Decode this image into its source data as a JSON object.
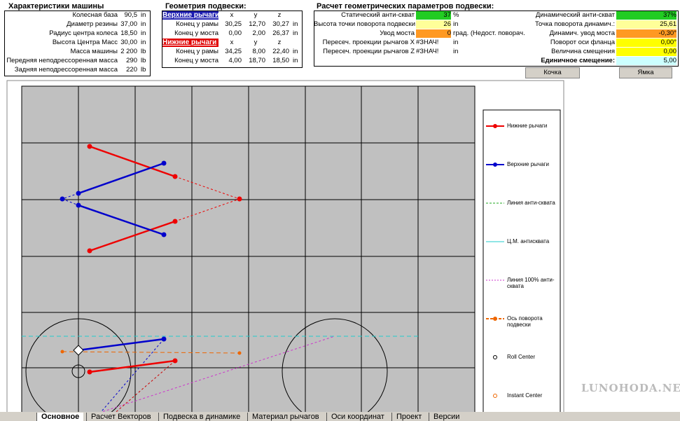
{
  "car": {
    "title": "Характеристики машины",
    "rows": [
      [
        "Колесная база",
        "90,5",
        "in"
      ],
      [
        "Диаметр резины",
        "37,00",
        "in"
      ],
      [
        "Радиус центра колеса",
        "18,50",
        "in"
      ],
      [
        "Высота Центра Масс",
        "30,00",
        "in"
      ],
      [
        "Масса машины",
        "2 200",
        "lb"
      ],
      [
        "Передняя неподрессоренная масса",
        "290",
        "lb"
      ],
      [
        "Задняя неподрессоренная масса",
        "220",
        "lb"
      ]
    ]
  },
  "geometry": {
    "title": "Геометрия подвески:",
    "columns": [
      "x",
      "y",
      "z"
    ],
    "groups": [
      {
        "name": "Верхние рычаги",
        "rows": [
          [
            "Конец у рамы",
            "30,25",
            "12,70",
            "30,27",
            "in"
          ],
          [
            "Конец у моста",
            "0,00",
            "2,00",
            "26,37",
            "in"
          ]
        ]
      },
      {
        "name": "Нижние рычаги",
        "rows": [
          [
            "Конец у рамы",
            "34,25",
            "8,00",
            "22,40",
            "in"
          ],
          [
            "Конец у моста",
            "4,00",
            "18,70",
            "18,50",
            "in"
          ]
        ]
      }
    ]
  },
  "calc": {
    "title": "Расчет геометрических параметров подвески:",
    "left": [
      [
        "Статический анти-скват",
        "37",
        "%"
      ],
      [
        "Высота точки поворота подвески",
        "26",
        "in"
      ],
      [
        "Увод моста",
        "0",
        "град. (Недост. поворач."
      ],
      [
        "Пересеч. проекции рычагов X",
        "#ЗНАЧ!",
        "in"
      ],
      [
        "Пересеч. проекции рычагов Z",
        "#ЗНАЧ!",
        "in"
      ]
    ],
    "right": [
      [
        "Динамический анти-скват",
        "37%"
      ],
      [
        "Точка поворота динамич.:",
        "25,61"
      ],
      [
        "Динамич. увод моста",
        "-0,30°"
      ],
      [
        "Поворот оси фланца",
        "0,00°"
      ],
      [
        "Величина смещения",
        "0,00"
      ],
      [
        "Единичное смещение:",
        "5,00"
      ]
    ]
  },
  "buttons": [
    "Кочка",
    "Ямка"
  ],
  "legend": [
    "Нижние рычаги",
    "Верхние рычаги",
    "Линия анти-сквата",
    "Ц.М. антисквата",
    "Линия 100% анти-сквата",
    "Ось поворота подвески",
    "Roll Center",
    "Instant Center"
  ],
  "tabs": [
    "Основное",
    "Расчет Векторов",
    "Подвеска в динамике",
    "Материал рычагов",
    "Оси координат",
    "Проект",
    "Версии"
  ],
  "watermark": "LUNOHODA.NET"
}
